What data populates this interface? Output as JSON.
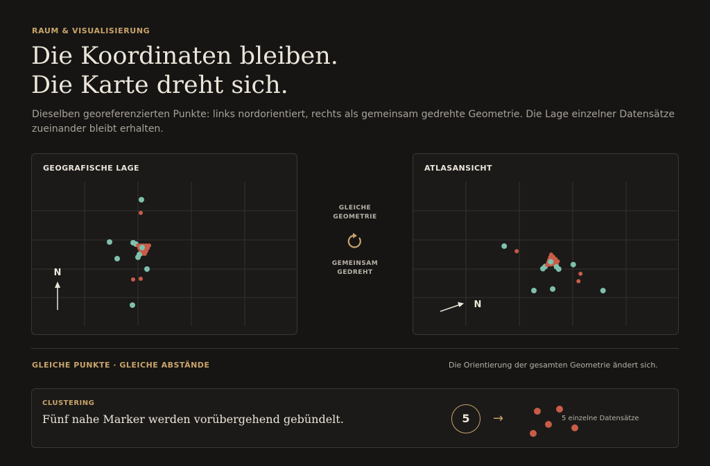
{
  "header": {
    "eyebrow": "RAUM & VISUALISIERUNG",
    "headline_line1": "Die Koordinaten bleiben.",
    "headline_line2": "Die Karte dreht sich.",
    "lead": "Dieselben georeferenzierten Punkte: links nordorientiert, rechts als gemeinsam gedrehte Geometrie. Die Lage einzelner Datensätze zueinander bleibt erhalten."
  },
  "colors": {
    "accent": "#c9a46a",
    "teal": "#7fbfae",
    "red": "#c85c48",
    "background": "#161514",
    "panel": "#1b1a18"
  },
  "left_panel": {
    "title": "GEOGRAFISCHE LAGE",
    "north_label": "N",
    "rotation_deg": 0
  },
  "right_panel": {
    "title": "ATLASANSICHT",
    "north_label": "N",
    "rotation_deg": -70
  },
  "center": {
    "top_label_line1": "GLEICHE",
    "top_label_line2": "GEOMETRIE",
    "icon": "rotate-icon",
    "bottom_label_line1": "GEMEINSAM",
    "bottom_label_line2": "GEDREHT"
  },
  "summary": {
    "left": "GLEICHE PUNKTE · GLEICHE ABSTÄNDE",
    "right": "Die Orientierung der gesamten Geometrie ändert sich."
  },
  "cluster_card": {
    "eyebrow": "CLUSTERING",
    "text": "Fünf nahe Marker werden vorübergehend gebündelt.",
    "count": "5",
    "arrow_icon": "arrow-right-icon",
    "note": "5 einzelne Datensätze"
  }
}
